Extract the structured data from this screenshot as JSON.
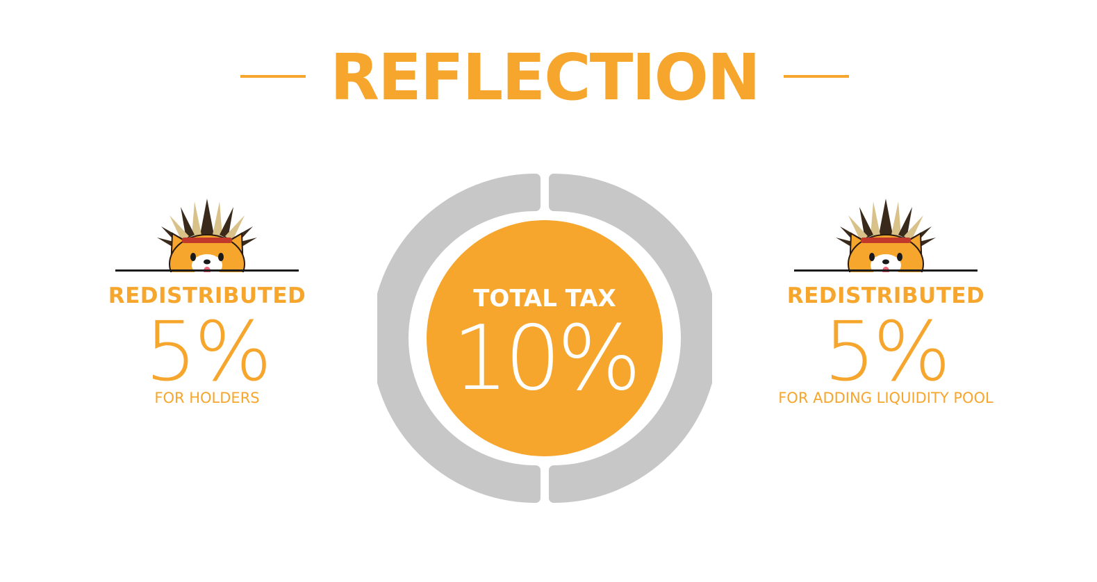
{
  "header": {
    "title": "REFLECTION"
  },
  "center": {
    "label": "TOTAL TAX",
    "value": "10%",
    "ring_color": "#c7c7c7",
    "fill_color": "#f6a52d"
  },
  "left_panel": {
    "label": "REDISTRIBUTED",
    "value": "5%",
    "caption": "FOR HOLDERS"
  },
  "right_panel": {
    "label": "REDISTRIBUTED",
    "value": "5%",
    "caption": "FOR ADDING LIQUIDITY POOL"
  },
  "colors": {
    "accent": "#f6a52d",
    "ring": "#c7c7c7",
    "background": "#ffffff"
  }
}
